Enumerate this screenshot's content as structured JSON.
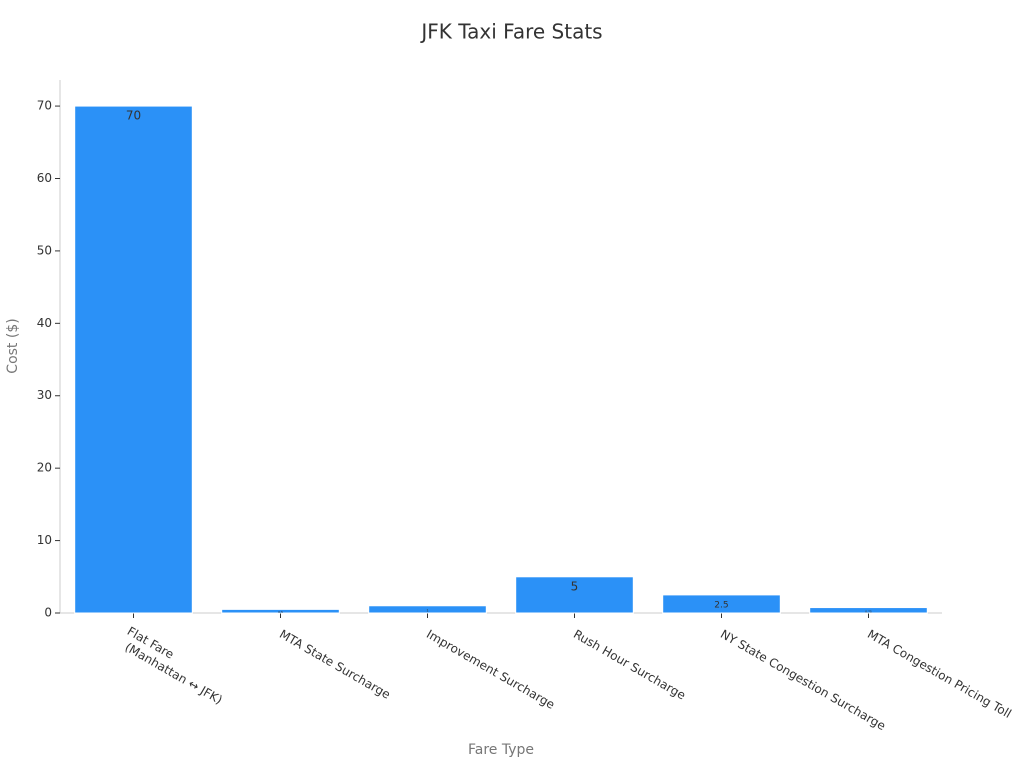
{
  "chart_data": {
    "type": "bar",
    "title": "JFK Taxi Fare Stats",
    "x_label": "Fare Type",
    "y_label": "Cost ($)",
    "categories": [
      "Flat Fare\n(Manhattan ↔ JFK)",
      "MTA State Surcharge",
      "Improvement Surcharge",
      "Rush Hour Surcharge",
      "NY State Congestion Surcharge",
      "MTA Congestion Pricing Toll"
    ],
    "values": [
      70,
      0.5,
      1,
      5,
      2.5,
      0.75
    ],
    "color": "#2b91f7",
    "ylim": [
      0,
      73.6
    ],
    "yticks": [
      0,
      10,
      20,
      30,
      40,
      50,
      60,
      70
    ],
    "grid": false
  }
}
